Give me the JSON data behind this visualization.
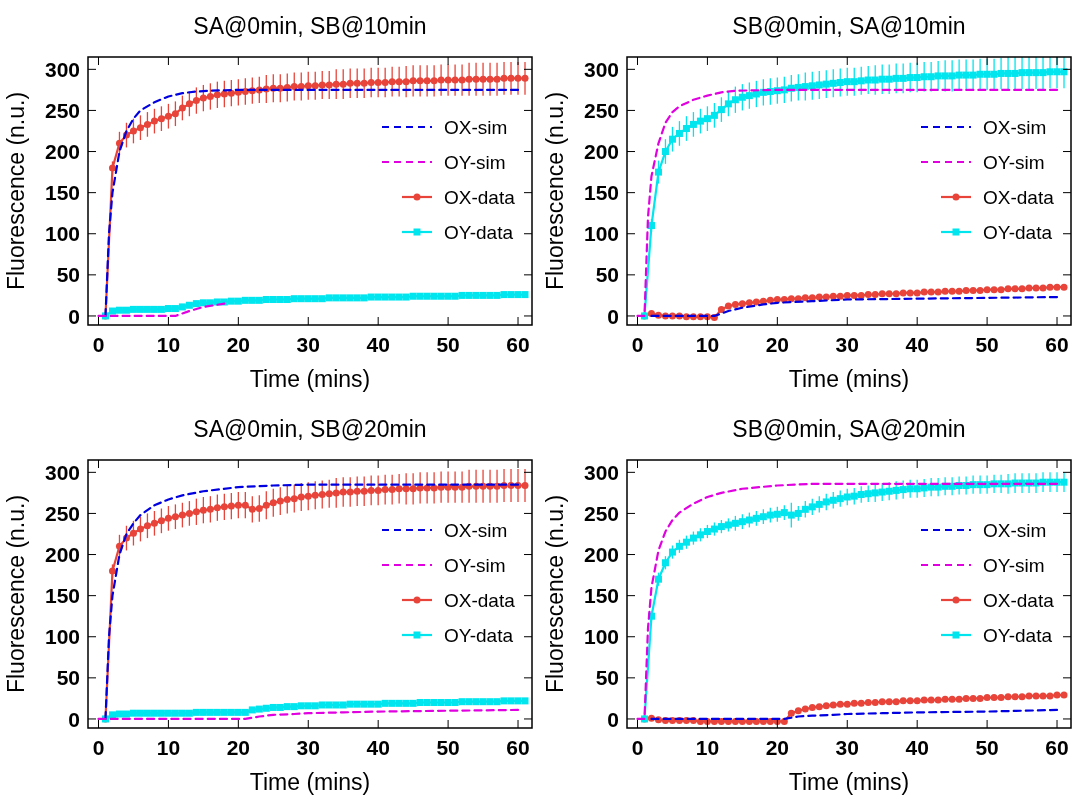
{
  "chart_data": [
    {
      "type": "line",
      "title": "SA@0min, SB@10min",
      "xlabel": "Time (mins)",
      "ylabel": "Fluorescence (n.u.)",
      "xlim": [
        -1.5,
        62
      ],
      "ylim": [
        -11,
        315
      ],
      "xticks": [
        0,
        10,
        20,
        30,
        40,
        50,
        60
      ],
      "yticks": [
        0,
        50,
        100,
        150,
        200,
        250,
        300
      ],
      "legend": "right",
      "grid": false,
      "x": [
        1,
        2,
        3,
        4,
        5,
        6,
        7,
        8,
        9,
        10,
        11,
        12,
        13,
        14,
        15,
        16,
        17,
        18,
        19,
        20,
        21,
        22,
        23,
        24,
        25,
        26,
        27,
        28,
        29,
        30,
        31,
        32,
        33,
        34,
        35,
        36,
        37,
        38,
        39,
        40,
        41,
        42,
        43,
        44,
        45,
        46,
        47,
        48,
        49,
        50,
        51,
        52,
        53,
        54,
        55,
        56,
        57,
        58,
        59,
        60,
        61
      ],
      "series": [
        {
          "name": "OX-sim",
          "color": "#0000e0",
          "line_style": "dashed",
          "marker": "none",
          "x": [
            1,
            1.5,
            2,
            3,
            4,
            5,
            6,
            8,
            10,
            12,
            14,
            16,
            20,
            30,
            60
          ],
          "values": [
            0,
            100,
            150,
            200,
            225,
            240,
            250,
            260,
            267,
            271,
            273,
            274,
            275,
            275,
            275
          ]
        },
        {
          "name": "OY-sim",
          "color": "#e000e0",
          "line_style": "dashed",
          "marker": "none",
          "x": [
            0,
            11,
            13,
            15,
            18
          ],
          "values": [
            0,
            0,
            6,
            11,
            15
          ]
        },
        {
          "name": "OX-data",
          "color": "#e8443a",
          "line_style": "solid",
          "marker": "circle",
          "values": [
            0,
            180,
            210,
            220,
            225,
            229,
            233,
            237,
            240,
            243,
            246,
            253,
            258,
            262,
            265,
            267,
            269,
            270,
            271,
            272,
            273,
            274,
            275,
            276,
            277,
            277,
            278,
            279,
            279,
            280,
            280,
            281,
            281,
            282,
            282,
            283,
            283,
            283,
            284,
            284,
            284,
            285,
            285,
            285,
            286,
            286,
            286,
            286,
            287,
            287,
            287,
            287,
            288,
            288,
            288,
            288,
            288,
            289,
            289,
            289,
            289
          ],
          "errors": [
            null,
            8,
            14,
            15,
            15,
            15,
            15,
            15,
            15,
            15,
            15,
            15,
            15,
            16,
            16,
            16,
            16,
            16,
            16,
            16,
            16,
            16,
            16,
            17,
            17,
            17,
            17,
            17,
            17,
            17,
            17,
            17,
            17,
            18,
            18,
            18,
            18,
            18,
            18,
            18,
            18,
            18,
            18,
            19,
            19,
            19,
            19,
            19,
            19,
            19,
            19,
            19,
            20,
            20,
            20,
            20,
            20,
            20,
            20,
            20,
            20
          ]
        },
        {
          "name": "OY-data",
          "color": "#00e5ee",
          "line_style": "solid",
          "marker": "square",
          "values": [
            0,
            6,
            7,
            7,
            8,
            8,
            8,
            8,
            8,
            9,
            9,
            11,
            13,
            15,
            16,
            16,
            17,
            17,
            18,
            18,
            19,
            19,
            19,
            20,
            20,
            20,
            20,
            21,
            21,
            21,
            21,
            21,
            22,
            22,
            22,
            22,
            22,
            22,
            23,
            23,
            23,
            23,
            23,
            23,
            24,
            24,
            24,
            24,
            24,
            24,
            24,
            25,
            25,
            25,
            25,
            25,
            25,
            26,
            26,
            26,
            26
          ]
        }
      ]
    },
    {
      "type": "line",
      "title": "SB@0min, SA@10min",
      "xlabel": "Time (mins)",
      "ylabel": "Fluorescence (n.u.)",
      "xlim": [
        -1.5,
        62
      ],
      "ylim": [
        -11,
        315
      ],
      "xticks": [
        0,
        10,
        20,
        30,
        40,
        50,
        60
      ],
      "yticks": [
        0,
        50,
        100,
        150,
        200,
        250,
        300
      ],
      "legend": "right",
      "grid": false,
      "x": [
        1,
        2,
        3,
        4,
        5,
        6,
        7,
        8,
        9,
        10,
        11,
        12,
        13,
        14,
        15,
        16,
        17,
        18,
        19,
        20,
        21,
        22,
        23,
        24,
        25,
        26,
        27,
        28,
        29,
        30,
        31,
        32,
        33,
        34,
        35,
        36,
        37,
        38,
        39,
        40,
        41,
        42,
        43,
        44,
        45,
        46,
        47,
        48,
        49,
        50,
        51,
        52,
        53,
        54,
        55,
        56,
        57,
        58,
        59,
        60,
        61
      ],
      "series": [
        {
          "name": "OX-sim",
          "color": "#0000e0",
          "line_style": "dashed",
          "marker": "none",
          "x": [
            2,
            11,
            13,
            15,
            18,
            20,
            25,
            30,
            40,
            50,
            60
          ],
          "values": [
            0,
            0,
            6,
            10,
            14,
            16,
            18,
            20,
            21,
            22,
            23
          ]
        },
        {
          "name": "OY-sim",
          "color": "#e000e0",
          "line_style": "dashed",
          "marker": "none",
          "x": [
            0,
            1,
            1.5,
            2,
            3,
            4,
            5,
            6,
            8,
            10,
            12,
            14,
            20,
            60
          ],
          "values": [
            0,
            0,
            120,
            170,
            210,
            235,
            248,
            255,
            263,
            268,
            272,
            274,
            275,
            275
          ]
        },
        {
          "name": "OX-data",
          "color": "#e8443a",
          "line_style": "solid",
          "marker": "circle",
          "values": [
            0,
            3,
            1,
            0,
            0,
            0,
            -1,
            -1,
            -1,
            -1,
            -2,
            8,
            12,
            14,
            15,
            16,
            17,
            18,
            19,
            20,
            20,
            21,
            21,
            22,
            22,
            23,
            23,
            24,
            24,
            25,
            25,
            25,
            26,
            26,
            27,
            27,
            27,
            28,
            28,
            28,
            29,
            29,
            29,
            30,
            30,
            30,
            31,
            31,
            31,
            32,
            32,
            32,
            33,
            33,
            33,
            34,
            34,
            34,
            35,
            35,
            35
          ]
        },
        {
          "name": "OY-data",
          "color": "#00e5ee",
          "line_style": "solid",
          "marker": "square",
          "values": [
            0,
            110,
            175,
            200,
            215,
            222,
            228,
            233,
            237,
            240,
            244,
            251,
            258,
            263,
            266,
            268,
            270,
            272,
            273,
            274,
            275,
            277,
            278,
            279,
            280,
            281,
            282,
            283,
            284,
            285,
            285,
            286,
            287,
            287,
            288,
            288,
            289,
            289,
            290,
            290,
            291,
            291,
            292,
            292,
            292,
            293,
            293,
            293,
            294,
            294,
            294,
            295,
            295,
            295,
            296,
            296,
            296,
            296,
            297,
            297,
            297
          ],
          "errors": [
            null,
            8,
            14,
            15,
            15,
            15,
            15,
            15,
            15,
            15,
            15,
            15,
            15,
            16,
            16,
            16,
            16,
            16,
            16,
            16,
            16,
            16,
            16,
            17,
            17,
            17,
            17,
            17,
            17,
            17,
            17,
            17,
            17,
            18,
            18,
            18,
            18,
            18,
            18,
            18,
            18,
            18,
            18,
            19,
            19,
            19,
            19,
            19,
            19,
            19,
            19,
            19,
            20,
            20,
            20,
            20,
            20,
            20,
            20,
            20,
            20
          ]
        }
      ]
    },
    {
      "type": "line",
      "title": "SA@0min, SB@20min",
      "xlabel": "Time (mins)",
      "ylabel": "Fluorescence (n.u.)",
      "xlim": [
        -1.5,
        62
      ],
      "ylim": [
        -11,
        315
      ],
      "xticks": [
        0,
        10,
        20,
        30,
        40,
        50,
        60
      ],
      "yticks": [
        0,
        50,
        100,
        150,
        200,
        250,
        300
      ],
      "legend": "right",
      "grid": false,
      "x": [
        1,
        2,
        3,
        4,
        5,
        6,
        7,
        8,
        9,
        10,
        11,
        12,
        13,
        14,
        15,
        16,
        17,
        18,
        19,
        20,
        21,
        22,
        23,
        24,
        25,
        26,
        27,
        28,
        29,
        30,
        31,
        32,
        33,
        34,
        35,
        36,
        37,
        38,
        39,
        40,
        41,
        42,
        43,
        44,
        45,
        46,
        47,
        48,
        49,
        50,
        51,
        52,
        53,
        54,
        55,
        56,
        57,
        58,
        59,
        60,
        61
      ],
      "series": [
        {
          "name": "OX-sim",
          "color": "#0000e0",
          "line_style": "dashed",
          "marker": "none",
          "x": [
            1,
            1.5,
            2,
            3,
            4,
            5,
            6,
            8,
            10,
            12,
            15,
            20,
            25,
            30,
            60
          ],
          "values": [
            0,
            100,
            150,
            200,
            225,
            238,
            248,
            260,
            267,
            272,
            277,
            282,
            284,
            285,
            285
          ]
        },
        {
          "name": "OY-sim",
          "color": "#e000e0",
          "line_style": "dashed",
          "marker": "none",
          "x": [
            0,
            21,
            23,
            25,
            28,
            30,
            35,
            40,
            50,
            60
          ],
          "values": [
            0,
            0,
            3,
            5,
            6,
            7,
            8,
            9,
            10,
            11
          ]
        },
        {
          "name": "OX-data",
          "color": "#e8443a",
          "line_style": "solid",
          "marker": "circle",
          "values": [
            0,
            180,
            210,
            220,
            226,
            231,
            235,
            238,
            241,
            244,
            246,
            248,
            250,
            252,
            254,
            255,
            257,
            258,
            259,
            260,
            260,
            255,
            256,
            260,
            263,
            265,
            267,
            268,
            270,
            271,
            272,
            273,
            274,
            275,
            276,
            276,
            277,
            277,
            278,
            278,
            279,
            279,
            280,
            280,
            280,
            281,
            281,
            281,
            282,
            282,
            282,
            282,
            283,
            283,
            283,
            283,
            283,
            284,
            284,
            284,
            284
          ],
          "errors": [
            null,
            8,
            14,
            15,
            15,
            15,
            15,
            15,
            15,
            15,
            15,
            15,
            15,
            16,
            16,
            16,
            16,
            16,
            16,
            16,
            16,
            16,
            16,
            17,
            17,
            17,
            17,
            17,
            17,
            17,
            17,
            17,
            17,
            18,
            18,
            18,
            18,
            18,
            18,
            18,
            18,
            18,
            18,
            19,
            19,
            19,
            19,
            19,
            19,
            19,
            19,
            19,
            20,
            20,
            20,
            20,
            20,
            20,
            20,
            20,
            20
          ]
        },
        {
          "name": "OY-data",
          "color": "#00e5ee",
          "line_style": "solid",
          "marker": "square",
          "values": [
            0,
            5,
            6,
            6,
            7,
            7,
            7,
            7,
            7,
            7,
            7,
            7,
            7,
            8,
            8,
            8,
            8,
            8,
            8,
            8,
            8,
            11,
            12,
            13,
            14,
            14,
            15,
            15,
            16,
            16,
            16,
            17,
            17,
            17,
            17,
            18,
            18,
            18,
            18,
            18,
            19,
            19,
            19,
            19,
            19,
            20,
            20,
            20,
            20,
            20,
            20,
            21,
            21,
            21,
            21,
            21,
            21,
            22,
            22,
            22,
            22
          ]
        }
      ]
    },
    {
      "type": "line",
      "title": "SB@0min, SA@20min",
      "xlabel": "Time (mins)",
      "ylabel": "Fluorescence (n.u.)",
      "xlim": [
        -1.5,
        62
      ],
      "ylim": [
        -11,
        315
      ],
      "xticks": [
        0,
        10,
        20,
        30,
        40,
        50,
        60
      ],
      "yticks": [
        0,
        50,
        100,
        150,
        200,
        250,
        300
      ],
      "legend": "right",
      "grid": false,
      "x": [
        1,
        2,
        3,
        4,
        5,
        6,
        7,
        8,
        9,
        10,
        11,
        12,
        13,
        14,
        15,
        16,
        17,
        18,
        19,
        20,
        21,
        22,
        23,
        24,
        25,
        26,
        27,
        28,
        29,
        30,
        31,
        32,
        33,
        34,
        35,
        36,
        37,
        38,
        39,
        40,
        41,
        42,
        43,
        44,
        45,
        46,
        47,
        48,
        49,
        50,
        51,
        52,
        53,
        54,
        55,
        56,
        57,
        58,
        59,
        60,
        61
      ],
      "series": [
        {
          "name": "OX-sim",
          "color": "#0000e0",
          "line_style": "dashed",
          "marker": "none",
          "x": [
            2,
            21,
            23,
            25,
            28,
            30,
            35,
            40,
            50,
            60
          ],
          "values": [
            0,
            0,
            3,
            4,
            5,
            6,
            7,
            8,
            9,
            11
          ]
        },
        {
          "name": "OY-sim",
          "color": "#e000e0",
          "line_style": "dashed",
          "marker": "none",
          "x": [
            0,
            1,
            1.5,
            2,
            3,
            4,
            5,
            6,
            8,
            10,
            12,
            15,
            20,
            25,
            60
          ],
          "values": [
            0,
            0,
            110,
            160,
            205,
            228,
            242,
            251,
            262,
            270,
            275,
            280,
            284,
            286,
            286
          ]
        },
        {
          "name": "OX-data",
          "color": "#e8443a",
          "line_style": "solid",
          "marker": "circle",
          "values": [
            0,
            1,
            -1,
            -2,
            -2,
            -2,
            -2,
            -2,
            -3,
            -3,
            -3,
            -3,
            -3,
            -3,
            -3,
            -3,
            -3,
            -3,
            -3,
            -3,
            -3,
            7,
            10,
            12,
            14,
            15,
            16,
            17,
            18,
            18,
            19,
            19,
            20,
            20,
            21,
            21,
            21,
            22,
            22,
            22,
            23,
            23,
            23,
            24,
            24,
            24,
            25,
            25,
            25,
            26,
            26,
            26,
            27,
            27,
            27,
            28,
            28,
            28,
            28,
            29,
            29
          ]
        },
        {
          "name": "OY-data",
          "color": "#00e5ee",
          "line_style": "solid",
          "marker": "square",
          "values": [
            0,
            125,
            170,
            190,
            203,
            210,
            215,
            220,
            224,
            228,
            231,
            234,
            236,
            238,
            240,
            242,
            244,
            246,
            248,
            249,
            251,
            248,
            250,
            255,
            258,
            261,
            264,
            266,
            268,
            270,
            271,
            273,
            274,
            275,
            276,
            277,
            278,
            279,
            280,
            280,
            281,
            282,
            282,
            283,
            283,
            284,
            284,
            285,
            285,
            285,
            286,
            286,
            286,
            287,
            287,
            287,
            287,
            288,
            288,
            288,
            288
          ],
          "errors": [
            null,
            6,
            8,
            8,
            8,
            8,
            8,
            8,
            8,
            8,
            8,
            8,
            8,
            9,
            9,
            9,
            9,
            9,
            9,
            9,
            9,
            15,
            9,
            10,
            10,
            10,
            10,
            10,
            10,
            10,
            10,
            10,
            10,
            11,
            11,
            11,
            11,
            11,
            11,
            11,
            11,
            11,
            11,
            11,
            11,
            11,
            11,
            11,
            11,
            11,
            11,
            11,
            12,
            12,
            12,
            12,
            12,
            12,
            12,
            12,
            12
          ]
        }
      ]
    }
  ]
}
